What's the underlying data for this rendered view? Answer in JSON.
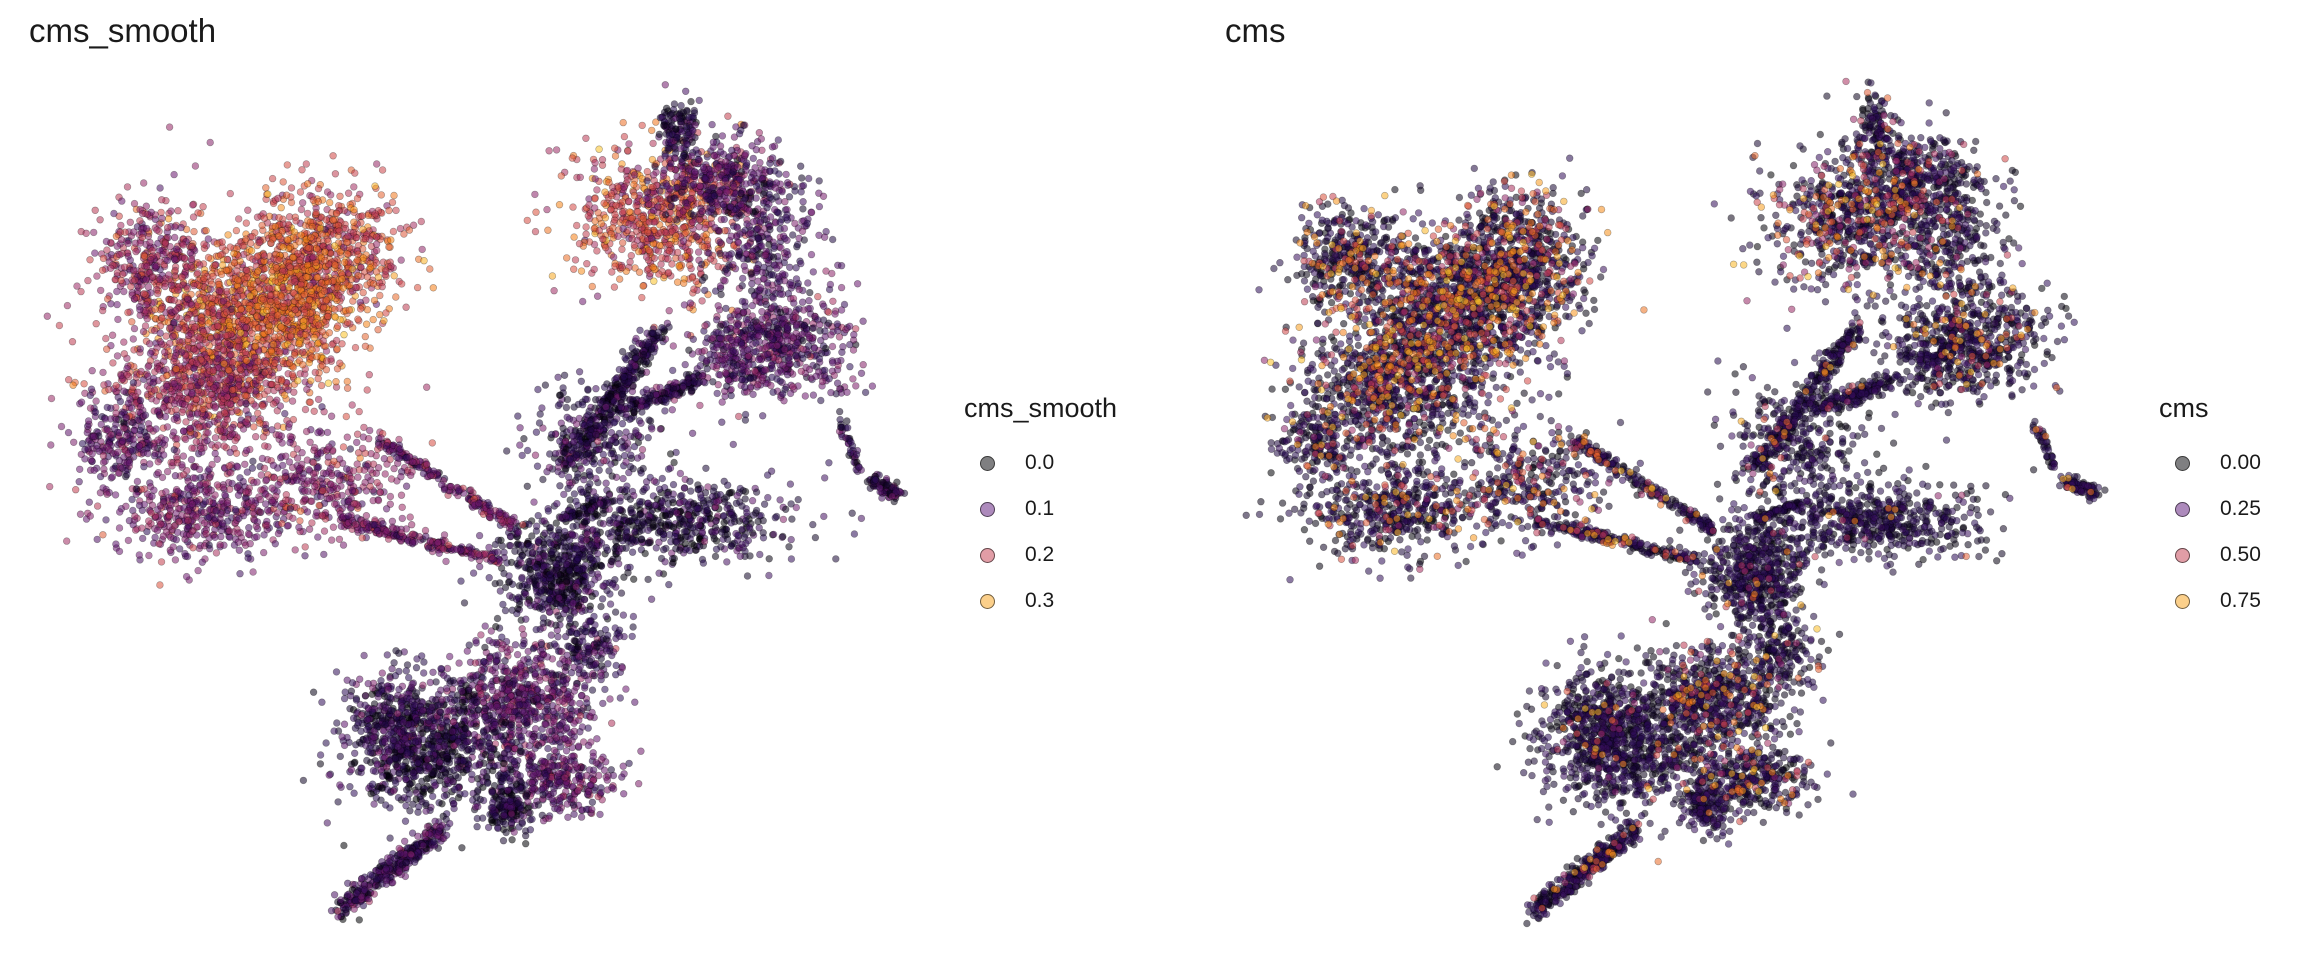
{
  "chart_data": [
    {
      "type": "scatter",
      "title": "cms_smooth",
      "xlabel": "",
      "ylabel": "",
      "grid": false,
      "axes_visible": false,
      "legend": {
        "title": "cms_smooth",
        "position": "right",
        "entries": [
          {
            "label": "0.0",
            "value": 0.0,
            "color": "#000004"
          },
          {
            "label": "0.1",
            "value": 0.1,
            "color": "#5c167a"
          },
          {
            "label": "0.2",
            "value": 0.2,
            "color": "#c43c4e"
          },
          {
            "label": "0.3",
            "value": 0.3,
            "color": "#f8a016"
          }
        ]
      },
      "color_scale": "inferno",
      "value_range": [
        0.0,
        0.35
      ],
      "marker_alpha": 0.5
    },
    {
      "type": "scatter",
      "title": "cms",
      "xlabel": "",
      "ylabel": "",
      "grid": false,
      "axes_visible": false,
      "legend": {
        "title": "cms",
        "position": "right",
        "entries": [
          {
            "label": "0.00",
            "value": 0.0,
            "color": "#000004"
          },
          {
            "label": "0.25",
            "value": 0.25,
            "color": "#5c167a"
          },
          {
            "label": "0.50",
            "value": 0.5,
            "color": "#c43c4e"
          },
          {
            "label": "0.75",
            "value": 0.75,
            "color": "#f8a016"
          }
        ]
      },
      "color_scale": "inferno",
      "value_range": [
        0.0,
        0.9
      ],
      "marker_alpha": 0.5
    }
  ]
}
